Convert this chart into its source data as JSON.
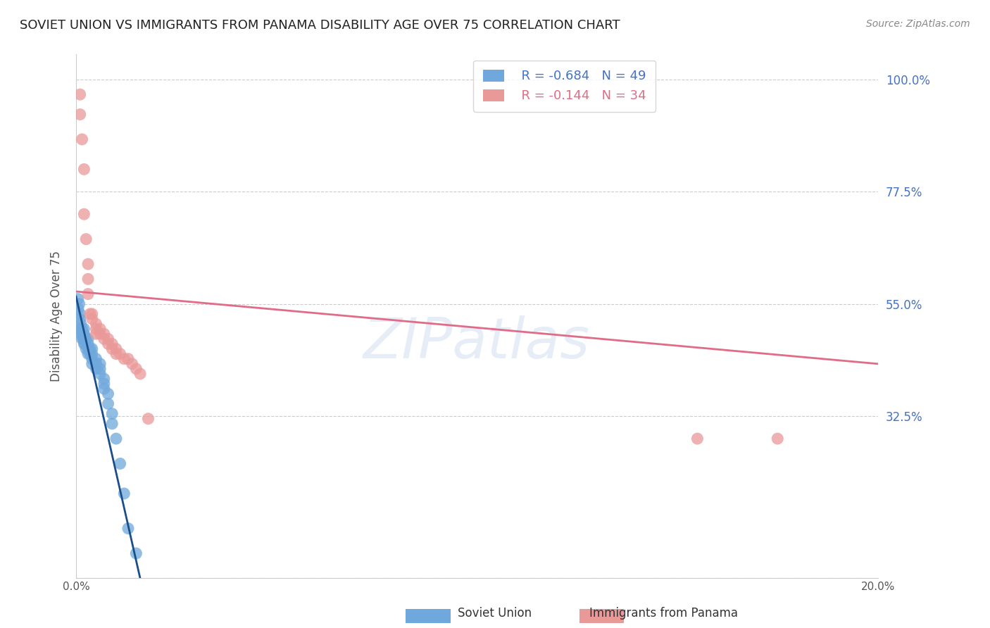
{
  "title": "SOVIET UNION VS IMMIGRANTS FROM PANAMA DISABILITY AGE OVER 75 CORRELATION CHART",
  "source": "Source: ZipAtlas.com",
  "ylabel": "Disability Age Over 75",
  "legend_label_blue": "Soviet Union",
  "legend_label_pink": "Immigrants from Panama",
  "legend_r_blue": "R = -0.684",
  "legend_n_blue": "N = 49",
  "legend_r_pink": "R = -0.144",
  "legend_n_pink": "N = 34",
  "xlim": [
    0.0,
    0.2
  ],
  "ylim": [
    0.0,
    1.05
  ],
  "yticks": [
    0.0,
    0.325,
    0.55,
    0.775,
    1.0
  ],
  "ytick_labels": [
    "",
    "32.5%",
    "55.0%",
    "77.5%",
    "100.0%"
  ],
  "xticks": [
    0.0,
    0.04,
    0.08,
    0.12,
    0.16,
    0.2
  ],
  "xtick_labels": [
    "0.0%",
    "",
    "",
    "",
    "",
    "20.0%"
  ],
  "color_blue": "#6fa8dc",
  "color_pink": "#ea9999",
  "line_color_blue": "#1a4e8a",
  "line_color_pink": "#e06c88",
  "watermark": "ZIPatlas",
  "soviet_x": [
    0.0005,
    0.0005,
    0.0008,
    0.001,
    0.001,
    0.001,
    0.0012,
    0.0012,
    0.0015,
    0.0015,
    0.0015,
    0.0018,
    0.0018,
    0.002,
    0.002,
    0.002,
    0.002,
    0.0022,
    0.0022,
    0.0025,
    0.0025,
    0.003,
    0.003,
    0.003,
    0.003,
    0.0035,
    0.0035,
    0.004,
    0.004,
    0.004,
    0.004,
    0.005,
    0.005,
    0.005,
    0.006,
    0.006,
    0.006,
    0.007,
    0.007,
    0.007,
    0.008,
    0.008,
    0.009,
    0.009,
    0.01,
    0.011,
    0.012,
    0.013,
    0.015
  ],
  "soviet_y": [
    0.56,
    0.54,
    0.55,
    0.53,
    0.52,
    0.5,
    0.51,
    0.49,
    0.5,
    0.49,
    0.48,
    0.49,
    0.48,
    0.5,
    0.49,
    0.48,
    0.47,
    0.48,
    0.47,
    0.48,
    0.46,
    0.48,
    0.47,
    0.46,
    0.45,
    0.46,
    0.45,
    0.46,
    0.45,
    0.44,
    0.43,
    0.44,
    0.43,
    0.42,
    0.43,
    0.42,
    0.41,
    0.4,
    0.39,
    0.38,
    0.37,
    0.35,
    0.33,
    0.31,
    0.28,
    0.23,
    0.17,
    0.1,
    0.05
  ],
  "panama_x": [
    0.001,
    0.001,
    0.0015,
    0.002,
    0.002,
    0.0025,
    0.003,
    0.003,
    0.003,
    0.0035,
    0.004,
    0.004,
    0.005,
    0.005,
    0.005,
    0.006,
    0.006,
    0.007,
    0.007,
    0.008,
    0.008,
    0.009,
    0.009,
    0.01,
    0.01,
    0.011,
    0.012,
    0.013,
    0.014,
    0.015,
    0.016,
    0.018,
    0.155,
    0.175
  ],
  "panama_y": [
    0.97,
    0.93,
    0.88,
    0.82,
    0.73,
    0.68,
    0.63,
    0.6,
    0.57,
    0.53,
    0.53,
    0.52,
    0.51,
    0.5,
    0.49,
    0.5,
    0.49,
    0.49,
    0.48,
    0.48,
    0.47,
    0.47,
    0.46,
    0.46,
    0.45,
    0.45,
    0.44,
    0.44,
    0.43,
    0.42,
    0.41,
    0.32,
    0.28,
    0.28
  ],
  "blue_line_x": [
    0.0,
    0.016
  ],
  "blue_line_y": [
    0.565,
    0.0
  ],
  "pink_line_x": [
    0.0,
    0.2
  ],
  "pink_line_y": [
    0.575,
    0.43
  ]
}
